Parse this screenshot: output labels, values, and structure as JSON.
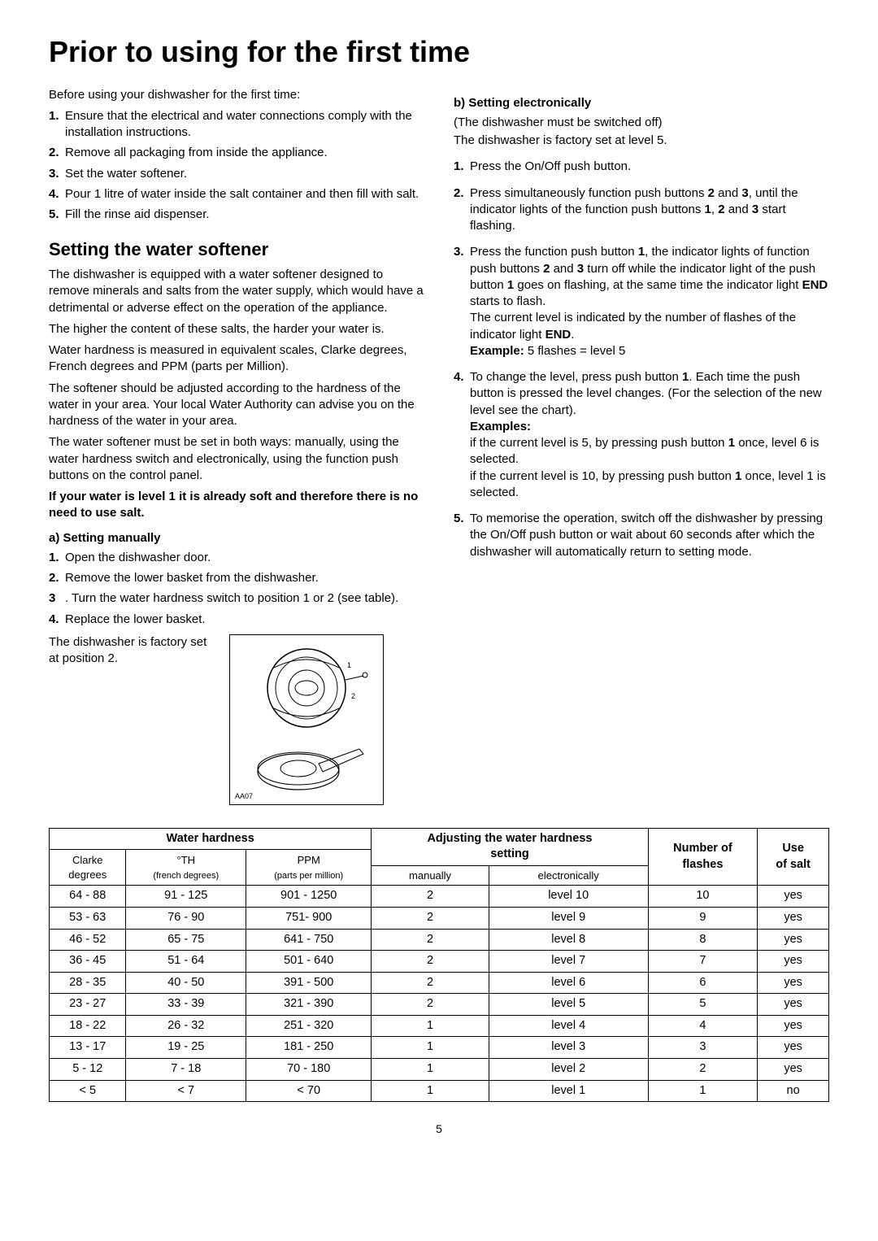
{
  "pageTitle": "Prior to using for the first time",
  "intro": "Before using your dishwasher for the first time:",
  "introList": [
    "Ensure that the electrical and water connections comply with the installation instructions.",
    "Remove all packaging from inside the appliance.",
    "Set the water softener.",
    "Pour 1 litre of water inside the salt container and then fill with salt.",
    "Fill the rinse aid dispenser."
  ],
  "softener": {
    "heading": "Setting the water softener",
    "p1": "The dishwasher is equipped with a water softener designed to remove minerals and salts from the water supply, which would have a detrimental or adverse effect on the operation of the appliance.",
    "p2": "The higher the content of these salts, the harder your water is.",
    "p3": "Water hardness is measured in equivalent scales, Clarke degrees, French degrees and PPM (parts per Million).",
    "p4": "The softener should be adjusted according to the hardness of the water in your area. Your local Water Authority can advise you on the hardness of the water in your area.",
    "p5": "The water softener must be set in both ways: manually, using the water hardness switch and electronically, using the function push buttons on the control panel.",
    "noteBold": "If your water is level 1 it is already soft and therefore there is no need to use salt."
  },
  "manual": {
    "heading": "a) Setting manually",
    "steps": [
      "Open the dishwasher door.",
      "Remove the lower basket from the dishwasher.",
      "Turn the water hardness switch to position 1 or 2 (see table).",
      "Replace the lower basket."
    ],
    "factory": "The dishwasher is factory set at position 2.",
    "diagramLabel": "AA07"
  },
  "electronic": {
    "heading": "b) Setting electronically",
    "sub": "(The dishwasher must be switched off)",
    "factory": "The dishwasher is factory set at level 5.",
    "step1": "Press the On/Off push button.",
    "step2_a": "Press simultaneously function push buttons ",
    "step2_b": " and ",
    "step2_c": ", until the indicator lights of the function push buttons ",
    "step2_d": ", ",
    "step2_e": " and ",
    "step2_f": " start flashing.",
    "b2": "2",
    "b3": "3",
    "b1": "1",
    "step3_a": "Press the function push button ",
    "step3_b": ", the indicator lights of function push buttons ",
    "step3_c": " and ",
    "step3_d": " turn off while the indicator light of the push button ",
    "step3_e": " goes on flashing, at the same time the indicator light ",
    "step3_f": " starts to flash.",
    "END": "END",
    "step3_line2a": "The current level is indicated by the number of flashes of the indicator light ",
    "step3_line2b": ".",
    "exampleLabel": "Example:",
    "exampleText": " 5 flashes = level 5",
    "step4_a": "To change the level, press push button ",
    "step4_b": ". Each time the push button is pressed the level changes. (For the selection of the new level see the chart).",
    "examplesLabel": "Examples:",
    "ex1a": "if the current level is 5, by pressing push button ",
    "ex1b": " once, level 6 is selected.",
    "ex2a": "if the current level is 10, by pressing push button ",
    "ex2b": " once, level 1 is selected.",
    "step5": "To memorise the operation, switch off the dishwasher by pressing the On/Off push button or wait about 60 seconds after which the dishwasher will automatically return to setting mode."
  },
  "table": {
    "h_water": "Water hardness",
    "h_adjust1": "Adjusting the water hardness",
    "h_adjust2": "setting",
    "h_flashes1": "Number of",
    "h_flashes2": "flashes",
    "h_salt1": "Use",
    "h_salt2": "of salt",
    "h_clarke1": "Clarke",
    "h_clarke2": "degrees",
    "h_th1": "°TH",
    "h_th2": "(french degrees)",
    "h_ppm1": "PPM",
    "h_ppm2": "(parts per million)",
    "h_man": "manually",
    "h_elec": "electronically",
    "rows": [
      [
        "64 - 88",
        "91 - 125",
        "901 - 1250",
        "2",
        "level 10",
        "10",
        "yes"
      ],
      [
        "53 - 63",
        "76 - 90",
        "751- 900",
        "2",
        "level 9",
        "9",
        "yes"
      ],
      [
        "46 - 52",
        "65 - 75",
        "641 - 750",
        "2",
        "level 8",
        "8",
        "yes"
      ],
      [
        "36 - 45",
        "51 - 64",
        "501 - 640",
        "2",
        "level 7",
        "7",
        "yes"
      ],
      [
        "28 - 35",
        "40 - 50",
        "391 - 500",
        "2",
        "level 6",
        "6",
        "yes"
      ],
      [
        "23 - 27",
        "33 - 39",
        "321 - 390",
        "2",
        "level 5",
        "5",
        "yes"
      ],
      [
        "18 - 22",
        "26 - 32",
        "251 - 320",
        "1",
        "level 4",
        "4",
        "yes"
      ],
      [
        "13 - 17",
        "19 - 25",
        "181 - 250",
        "1",
        "level 3",
        "3",
        "yes"
      ],
      [
        "5 - 12",
        "7 - 18",
        "70 - 180",
        "1",
        "level 2",
        "2",
        "yes"
      ],
      [
        "< 5",
        "< 7",
        "< 70",
        "1",
        "level 1",
        "1",
        "no"
      ]
    ]
  },
  "pageNumber": "5"
}
